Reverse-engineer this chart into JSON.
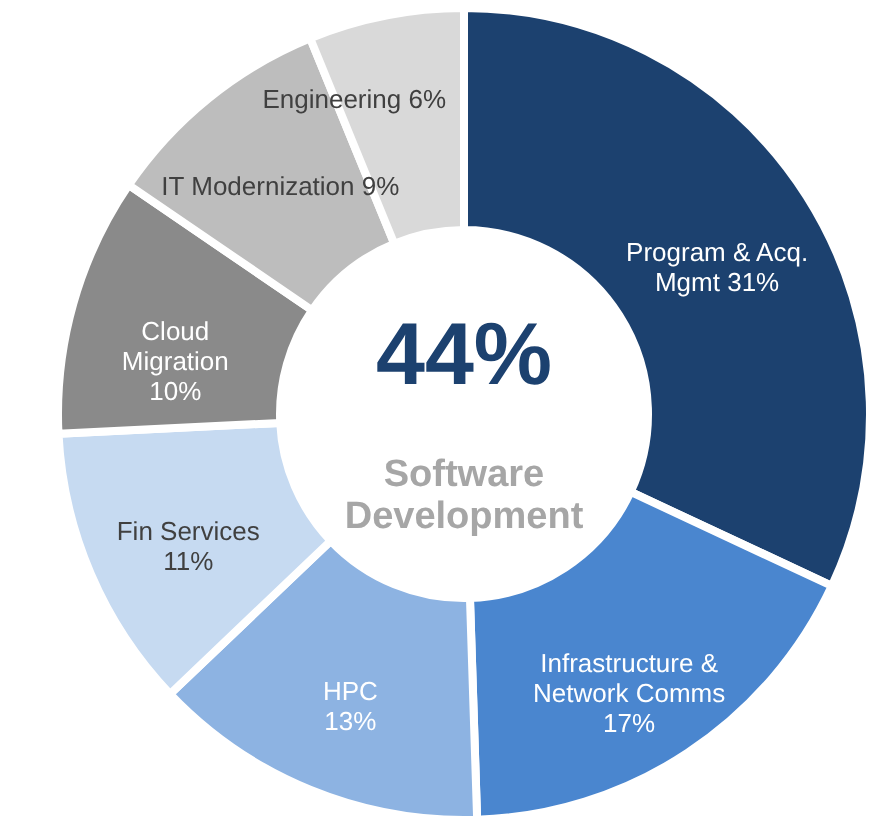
{
  "chart_data": {
    "type": "donut",
    "categories": [
      "Program & Acq. Mgmt",
      "Infrastructure & Network Comms",
      "HPC",
      "Fin Services",
      "Cloud Migration",
      "IT Modernization",
      "Engineering"
    ],
    "values": [
      31,
      17,
      13,
      11,
      10,
      9,
      6
    ],
    "colors": [
      "#1c416f",
      "#4a86cf",
      "#8db3e2",
      "#c6daf1",
      "#8a8a8a",
      "#bdbdbd",
      "#d9d9d9"
    ],
    "value_labels": [
      "31%",
      "17%",
      "13%",
      "11%",
      "10%",
      "9%",
      "6%"
    ],
    "annotations": [
      "44%",
      "Software\nDevelopment"
    ]
  }
}
